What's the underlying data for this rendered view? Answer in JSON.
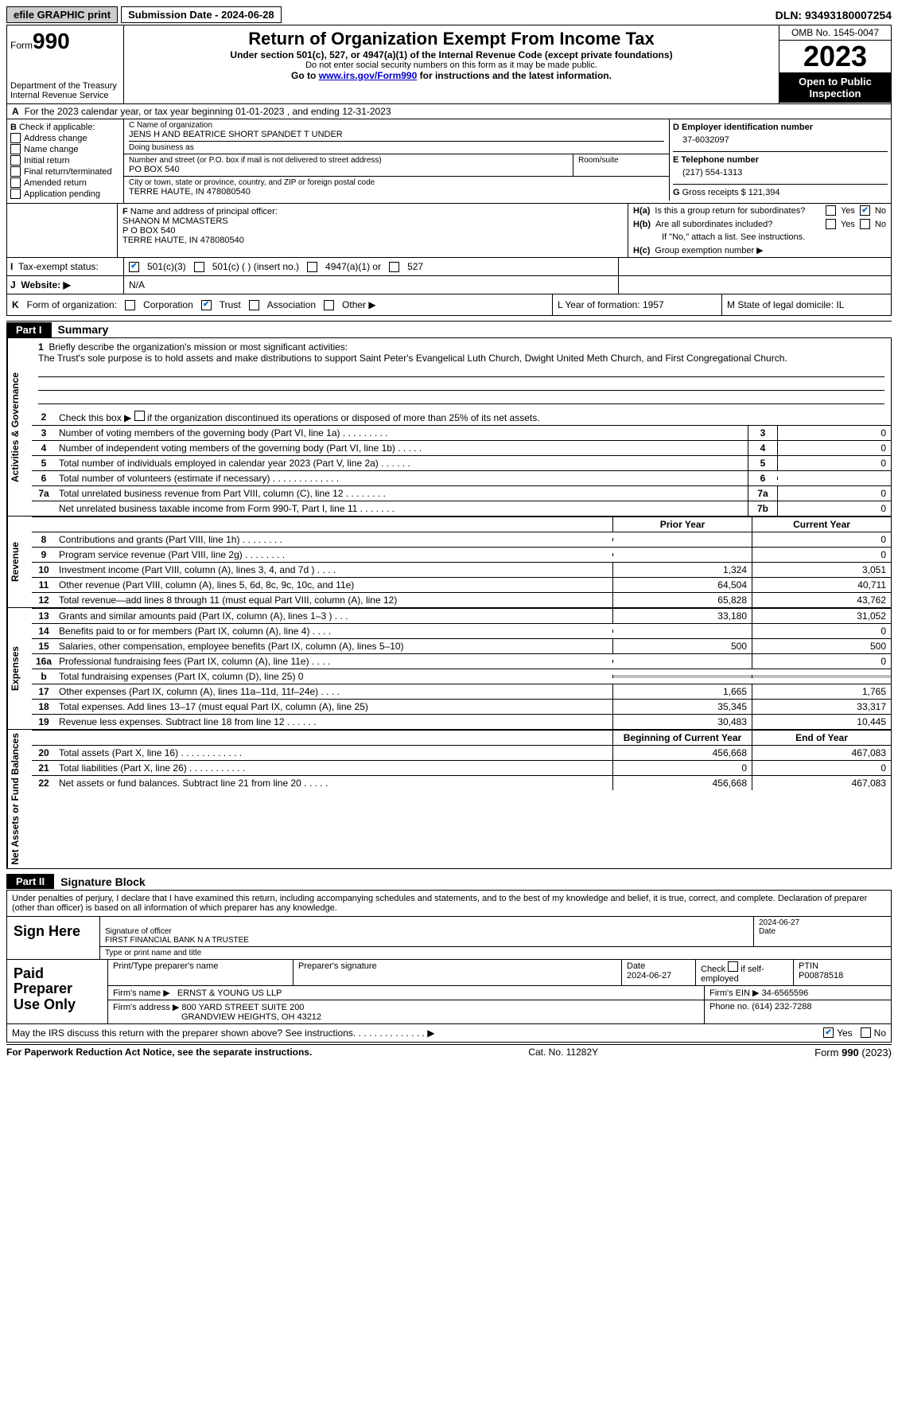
{
  "topbar": {
    "efile": "efile GRAPHIC print",
    "submission": "Submission Date - 2024-06-28",
    "dln": "DLN: 93493180007254"
  },
  "header": {
    "form_word": "Form",
    "form_num": "990",
    "title": "Return of Organization Exempt From Income Tax",
    "sub1": "Under section 501(c), 527, or 4947(a)(1) of the Internal Revenue Code (except private foundations)",
    "sub2": "Do not enter social security numbers on this form as it may be made public.",
    "sub3_pre": "Go to ",
    "sub3_link": "www.irs.gov/Form990",
    "sub3_post": " for instructions and the latest information.",
    "dept": "Department of the Treasury",
    "irs": "Internal Revenue Service",
    "omb": "OMB No. 1545-0047",
    "year": "2023",
    "inspect": "Open to Public Inspection"
  },
  "row_a": {
    "label": "A",
    "text": "For the 2023 calendar year, or tax year beginning 01-01-2023    , and ending 12-31-2023"
  },
  "box_b": {
    "label": "B",
    "intro": "Check if applicable:",
    "opts": [
      "Address change",
      "Name change",
      "Initial return",
      "Final return/terminated",
      "Amended return",
      "Application pending"
    ]
  },
  "box_c": {
    "name_lbl": "C Name of organization",
    "name": "JENS H AND BEATRICE SHORT SPANDET T UNDER",
    "dba_lbl": "Doing business as",
    "dba": "",
    "street_lbl": "Number and street (or P.O. box if mail is not delivered to street address)",
    "street": "PO BOX 540",
    "room_lbl": "Room/suite",
    "room": "",
    "city_lbl": "City or town, state or province, country, and ZIP or foreign postal code",
    "city": "TERRE HAUTE, IN  478080540"
  },
  "box_d": {
    "lbl": "D Employer identification number",
    "val": "37-6032097",
    "e_lbl": "E Telephone number",
    "e_val": "(217) 554-1313",
    "g_lbl": "G",
    "g_text": "Gross receipts $",
    "g_val": "121,394"
  },
  "box_f": {
    "lbl": "F",
    "text": "Name and address of principal officer:",
    "name": "SHANON M MCMASTERS",
    "addr1": "P O BOX 540",
    "addr2": "TERRE HAUTE, IN  478080540"
  },
  "box_h": {
    "a_lbl": "H(a)",
    "a_text": "Is this a group return for subordinates?",
    "b_lbl": "H(b)",
    "b_text": "Are all subordinates included?",
    "b_note": "If \"No,\" attach a list. See instructions.",
    "c_lbl": "H(c)",
    "c_text": "Group exemption number ▶",
    "yes": "Yes",
    "no": "No"
  },
  "row_i": {
    "lbl": "I",
    "text": "Tax-exempt status:",
    "o1": "501(c)(3)",
    "o2": "501(c) (   ) (insert no.)",
    "o3": "4947(a)(1) or",
    "o4": "527"
  },
  "row_j": {
    "lbl": "J",
    "text": "Website: ▶",
    "val": "N/A"
  },
  "row_k": {
    "lbl": "K",
    "text": "Form of organization:",
    "o1": "Corporation",
    "o2": "Trust",
    "o3": "Association",
    "o4": "Other ▶"
  },
  "row_l": {
    "text": "L Year of formation: 1957"
  },
  "row_m": {
    "text": "M State of legal domicile: IL"
  },
  "parts": {
    "p1": "Part I",
    "p1_title": "Summary",
    "p2": "Part II",
    "p2_title": "Signature Block"
  },
  "vlabels": {
    "ag": "Activities & Governance",
    "rev": "Revenue",
    "exp": "Expenses",
    "net": "Net Assets or Fund Balances"
  },
  "mission": {
    "num": "1",
    "lbl": "Briefly describe the organization's mission or most significant activities:",
    "text": "The Trust's sole purpose is to hold assets and make distributions to support Saint Peter's Evangelical Luth Church, Dwight United Meth Church, and First Congregational Church."
  },
  "line2": {
    "num": "2",
    "text": "Check this box ▶       if the organization discontinued its operations or disposed of more than 25% of its net assets."
  },
  "gov_lines": [
    {
      "n": "3",
      "d": "Number of voting members of the governing body (Part VI, line 1a)  .   .   .   .   .   .   .   .   .",
      "c": "3",
      "v": "0"
    },
    {
      "n": "4",
      "d": "Number of independent voting members of the governing body (Part VI, line 1b)  .   .   .   .   .",
      "c": "4",
      "v": "0"
    },
    {
      "n": "5",
      "d": "Total number of individuals employed in calendar year 2023 (Part V, line 2a)  .   .   .   .   .   .",
      "c": "5",
      "v": "0"
    },
    {
      "n": "6",
      "d": "Total number of volunteers (estimate if necessary)   .   .   .   .   .   .   .   .   .   .   .   .   .",
      "c": "6",
      "v": ""
    },
    {
      "n": "7a",
      "d": "Total unrelated business revenue from Part VIII, column (C), line 12  .   .   .   .   .   .   .   .",
      "c": "7a",
      "v": "0"
    },
    {
      "n": "",
      "d": "Net unrelated business taxable income from Form 990-T, Part I, line 11   .   .   .   .   .   .   .",
      "c": "7b",
      "v": "0"
    }
  ],
  "cols": {
    "prior": "Prior Year",
    "curr": "Current Year",
    "boy": "Beginning of Current Year",
    "eoy": "End of Year"
  },
  "rev_lines": [
    {
      "n": "8",
      "d": "Contributions and grants (Part VIII, line 1h)   .   .   .   .   .   .   .   .",
      "p": "",
      "c": "0"
    },
    {
      "n": "9",
      "d": "Program service revenue (Part VIII, line 2g)   .   .   .   .   .   .   .   .",
      "p": "",
      "c": "0"
    },
    {
      "n": "10",
      "d": "Investment income (Part VIII, column (A), lines 3, 4, and 7d )  .   .   .   .",
      "p": "1,324",
      "c": "3,051"
    },
    {
      "n": "11",
      "d": "Other revenue (Part VIII, column (A), lines 5, 6d, 8c, 9c, 10c, and 11e)",
      "p": "64,504",
      "c": "40,711"
    },
    {
      "n": "12",
      "d": "Total revenue—add lines 8 through 11 (must equal Part VIII, column (A), line 12)",
      "p": "65,828",
      "c": "43,762"
    }
  ],
  "exp_lines": [
    {
      "n": "13",
      "d": "Grants and similar amounts paid (Part IX, column (A), lines 1–3 )  .   .   .",
      "p": "33,180",
      "c": "31,052"
    },
    {
      "n": "14",
      "d": "Benefits paid to or for members (Part IX, column (A), line 4)  .   .   .   .",
      "p": "",
      "c": "0"
    },
    {
      "n": "15",
      "d": "Salaries, other compensation, employee benefits (Part IX, column (A), lines 5–10)",
      "p": "500",
      "c": "500"
    },
    {
      "n": "16a",
      "d": "Professional fundraising fees (Part IX, column (A), line 11e)  .   .   .   .",
      "p": "",
      "c": "0"
    },
    {
      "n": "b",
      "d": "Total fundraising expenses (Part IX, column (D), line 25) 0",
      "p": "grey",
      "c": "grey"
    },
    {
      "n": "17",
      "d": "Other expenses (Part IX, column (A), lines 11a–11d, 11f–24e)  .   .   .   .",
      "p": "1,665",
      "c": "1,765"
    },
    {
      "n": "18",
      "d": "Total expenses. Add lines 13–17 (must equal Part IX, column (A), line 25)",
      "p": "35,345",
      "c": "33,317"
    },
    {
      "n": "19",
      "d": "Revenue less expenses. Subtract line 18 from line 12   .   .   .   .   .   .",
      "p": "30,483",
      "c": "10,445"
    }
  ],
  "net_lines": [
    {
      "n": "20",
      "d": "Total assets (Part X, line 16)   .   .   .   .   .   .   .   .   .   .   .   .",
      "p": "456,668",
      "c": "467,083"
    },
    {
      "n": "21",
      "d": "Total liabilities (Part X, line 26)   .   .   .   .   .   .   .   .   .   .   .",
      "p": "0",
      "c": "0"
    },
    {
      "n": "22",
      "d": "Net assets or fund balances. Subtract line 21 from line 20  .   .   .   .   .",
      "p": "456,668",
      "c": "467,083"
    }
  ],
  "sig": {
    "decl": "Under penalties of perjury, I declare that I have examined this return, including accompanying schedules and statements, and to the best of my knowledge and belief, it is true, correct, and complete. Declaration of preparer (other than officer) is based on all information of which preparer has any knowledge.",
    "sign_here": "Sign Here",
    "sig_of": "Signature of officer",
    "sig_name": "FIRST FINANCIAL BANK N A  TRUSTEE",
    "type_lbl": "Type or print name and title",
    "date": "2024-06-27",
    "date_lbl": "Date"
  },
  "paid": {
    "title": "Paid Preparer Use Only",
    "name_lbl": "Print/Type preparer's name",
    "sig_lbl": "Preparer's signature",
    "date_lbl": "Date",
    "date": "2024-06-27",
    "check_lbl": "Check       if self-employed",
    "ptin_lbl": "PTIN",
    "ptin": "P00878518",
    "firm_name_lbl": "Firm's name    ▶",
    "firm_name": "ERNST & YOUNG US LLP",
    "firm_ein_lbl": "Firm's EIN ▶",
    "firm_ein": "34-6565596",
    "firm_addr_lbl": "Firm's address ▶",
    "firm_addr1": "800 YARD STREET SUITE 200",
    "firm_addr2": "GRANDVIEW HEIGHTS, OH  43212",
    "phone_lbl": "Phone no.",
    "phone": "(614) 232-7288"
  },
  "discuss": {
    "text": "May the IRS discuss this return with the preparer shown above? See instructions.   .   .   .   .   .   .   .   .   .   .   .   .   . ▶",
    "yes": "Yes",
    "no": "No"
  },
  "footer": {
    "left": "For Paperwork Reduction Act Notice, see the separate instructions.",
    "mid": "Cat. No. 11282Y",
    "right_pre": "Form ",
    "right_b": "990",
    "right_post": " (2023)"
  }
}
